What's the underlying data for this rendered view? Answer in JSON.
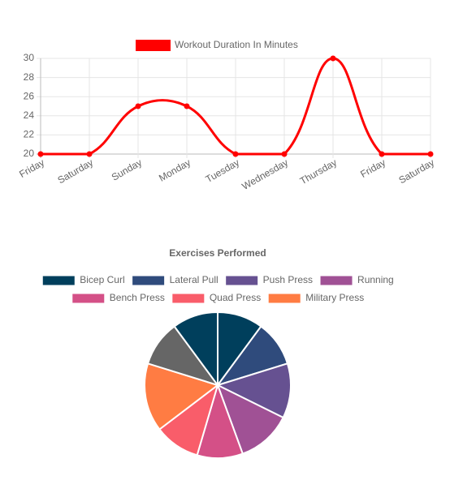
{
  "chart_data": [
    {
      "type": "line",
      "categories": [
        "Friday",
        "Saturday",
        "Sunday",
        "Monday",
        "Tuesday",
        "Wednesday",
        "Thursday",
        "Friday",
        "Saturday"
      ],
      "series": [
        {
          "name": "Workout Duration In Minutes",
          "color": "#ff0000",
          "values": [
            20,
            20,
            25,
            25,
            20,
            20,
            30,
            20,
            20
          ]
        }
      ],
      "ylim": [
        20,
        30
      ],
      "yticks": [
        20,
        22,
        24,
        26,
        28,
        30
      ],
      "grid": true,
      "legend": "top"
    },
    {
      "type": "pie",
      "title": "Exercises Performed",
      "labels": [
        "Bicep Curl",
        "Lateral Pull",
        "Push Press",
        "Running",
        "Bench Press",
        "Quad Press",
        "Military Press",
        null,
        null
      ],
      "values": [
        10,
        10,
        12,
        12,
        10,
        10,
        15,
        10,
        10
      ],
      "colors": [
        "#003f5c",
        "#2f4b7c",
        "#665191",
        "#a05195",
        "#d45087",
        "#f95d6a",
        "#ff7c43",
        "#666666",
        "#003f5c"
      ],
      "legend": "top"
    }
  ]
}
